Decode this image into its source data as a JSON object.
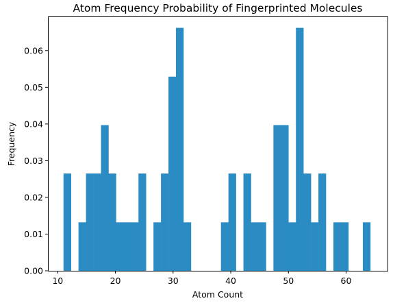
{
  "chart_data": {
    "type": "bar",
    "title": "Atom Frequency Probability of Fingerprinted Molecules",
    "xlabel": "Atom Count",
    "ylabel": "Frequency",
    "xlim": [
      8.3,
      67.3
    ],
    "ylim": [
      0,
      0.0693
    ],
    "xticks": [
      10,
      20,
      30,
      40,
      50,
      60
    ],
    "yticks": [
      0.0,
      0.01,
      0.02,
      0.03,
      0.04,
      0.05,
      0.06
    ],
    "ytick_labels": [
      "0.00",
      "0.01",
      "0.02",
      "0.03",
      "0.04",
      "0.05",
      "0.06"
    ],
    "bin_width": 1.3,
    "bar_color": "#2b8cc4",
    "grid": false,
    "bins": [
      {
        "start": 11.0,
        "value": 0.0265
      },
      {
        "start": 13.6,
        "value": 0.0132
      },
      {
        "start": 14.9,
        "value": 0.0265
      },
      {
        "start": 16.2,
        "value": 0.0265
      },
      {
        "start": 17.5,
        "value": 0.0397
      },
      {
        "start": 18.8,
        "value": 0.0265
      },
      {
        "start": 20.1,
        "value": 0.0132
      },
      {
        "start": 21.4,
        "value": 0.0132
      },
      {
        "start": 22.7,
        "value": 0.0132
      },
      {
        "start": 24.0,
        "value": 0.0265
      },
      {
        "start": 26.6,
        "value": 0.0132
      },
      {
        "start": 27.9,
        "value": 0.0265
      },
      {
        "start": 29.2,
        "value": 0.0529
      },
      {
        "start": 30.5,
        "value": 0.0662
      },
      {
        "start": 31.8,
        "value": 0.0132
      },
      {
        "start": 38.3,
        "value": 0.0132
      },
      {
        "start": 39.6,
        "value": 0.0265
      },
      {
        "start": 42.2,
        "value": 0.0265
      },
      {
        "start": 43.5,
        "value": 0.0132
      },
      {
        "start": 44.8,
        "value": 0.0132
      },
      {
        "start": 47.4,
        "value": 0.0397
      },
      {
        "start": 48.7,
        "value": 0.0397
      },
      {
        "start": 50.0,
        "value": 0.0132
      },
      {
        "start": 51.3,
        "value": 0.0662
      },
      {
        "start": 52.6,
        "value": 0.0265
      },
      {
        "start": 53.9,
        "value": 0.0132
      },
      {
        "start": 55.2,
        "value": 0.0265
      },
      {
        "start": 57.8,
        "value": 0.0132
      },
      {
        "start": 59.1,
        "value": 0.0132
      },
      {
        "start": 62.9,
        "value": 0.0132
      }
    ]
  }
}
